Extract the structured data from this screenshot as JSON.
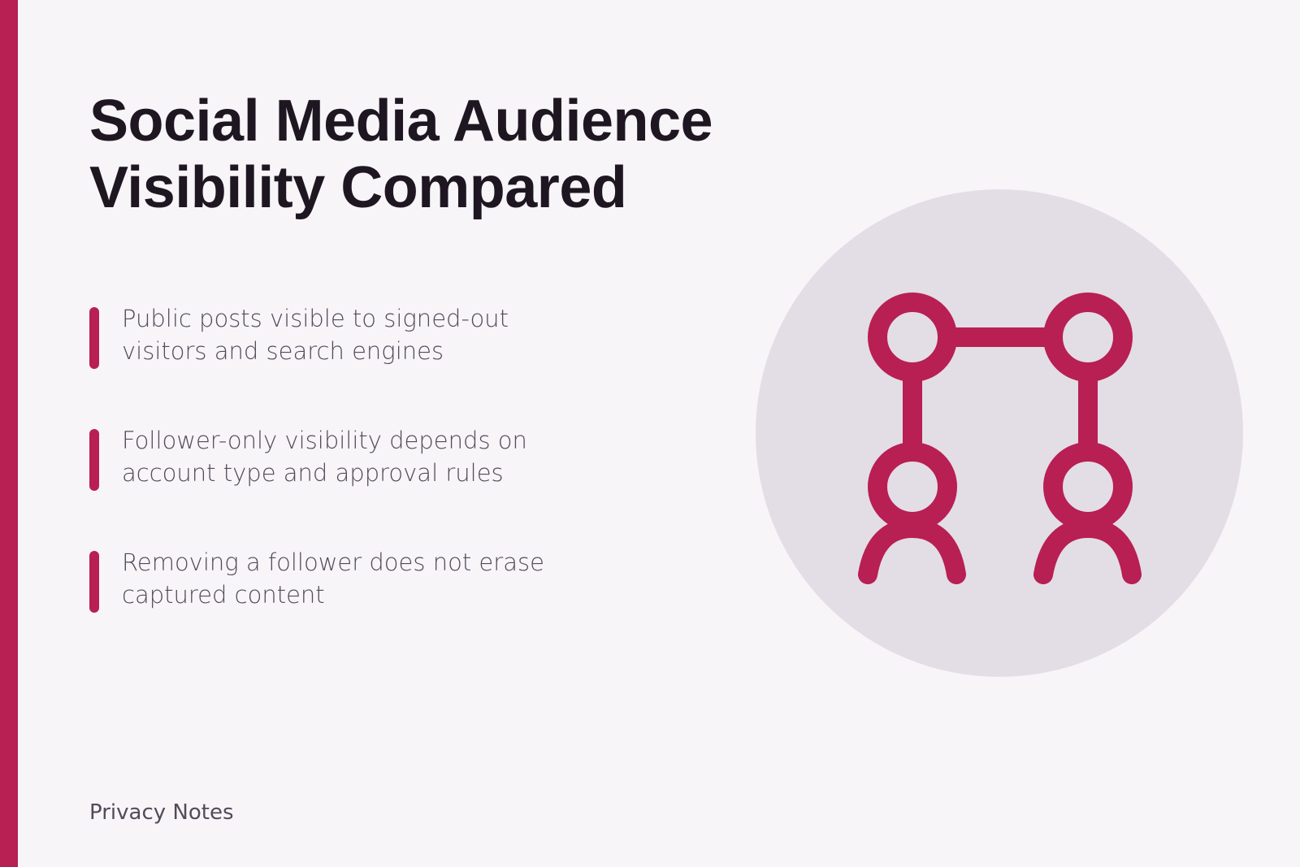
{
  "header": {
    "title_lines": [
      "Social Media Audience",
      "Visibility Compared"
    ]
  },
  "bullets": [
    {
      "lines": [
        "Public posts visible to signed-out",
        "visitors and search engines"
      ]
    },
    {
      "lines": [
        "Follower-only visibility depends on",
        "account type and approval rules"
      ]
    },
    {
      "lines": [
        "Removing a follower does not erase",
        "captured content"
      ]
    }
  ],
  "footer": {
    "label": "Privacy Notes"
  }
}
